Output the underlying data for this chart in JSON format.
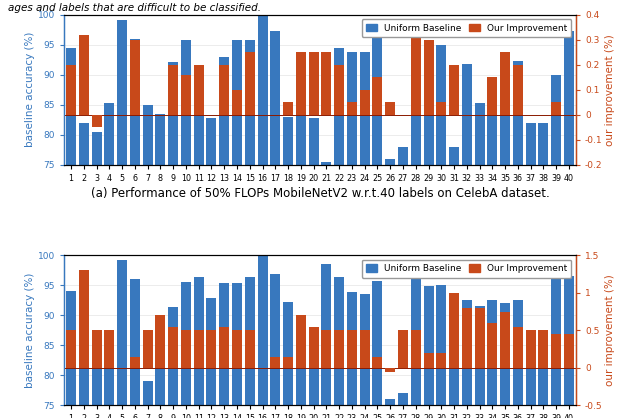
{
  "labels": [
    "1",
    "2",
    "3",
    "4",
    "5",
    "6",
    "7",
    "8",
    "9",
    "10",
    "11",
    "12",
    "13",
    "14",
    "15",
    "16",
    "17",
    "18",
    "19",
    "20",
    "21",
    "22",
    "23",
    "24",
    "25",
    "26",
    "27",
    "28",
    "29",
    "30",
    "31",
    "32",
    "33",
    "34",
    "35",
    "36",
    "37",
    "38",
    "39",
    "40"
  ],
  "chart1": {
    "baseline": [
      94.5,
      82.0,
      80.5,
      85.3,
      99.1,
      96.0,
      85.0,
      83.5,
      92.2,
      95.7,
      86.0,
      82.8,
      93.0,
      95.7,
      95.8,
      100.0,
      97.2,
      83.0,
      89.0,
      82.8,
      75.5,
      94.5,
      93.8,
      93.8,
      96.3,
      76.0,
      78.0,
      95.2,
      95.2,
      95.0,
      78.0,
      91.8,
      85.3,
      85.3,
      92.0,
      92.3,
      82.0,
      82.0,
      90.0,
      97.2
    ],
    "improvement": [
      0.2,
      0.32,
      -0.05,
      0.0,
      0.0,
      0.3,
      0.0,
      0.0,
      0.2,
      0.16,
      0.2,
      0.0,
      0.2,
      0.1,
      0.25,
      0.0,
      0.0,
      0.05,
      0.25,
      0.25,
      0.25,
      0.2,
      0.05,
      0.1,
      0.15,
      0.05,
      0.0,
      0.32,
      0.3,
      0.05,
      0.2,
      0.0,
      0.0,
      0.15,
      0.25,
      0.2,
      0.0,
      0.0,
      0.05,
      0.0
    ],
    "ylim_left": [
      75,
      100
    ],
    "ylim_right": [
      -0.2,
      0.4
    ],
    "yticks_left": [
      75,
      80,
      85,
      90,
      95,
      100
    ],
    "yticks_right": [
      -0.2,
      -0.1,
      0.0,
      0.1,
      0.2,
      0.3,
      0.4
    ],
    "subtitle": "(a) Performance of 50% FLOPs MobileNetV2 w.r.t.40 labels on CelebA dataset."
  },
  "chart2": {
    "baseline": [
      94.0,
      81.5,
      81.5,
      85.0,
      99.2,
      96.0,
      79.0,
      86.2,
      91.3,
      95.5,
      96.3,
      92.8,
      95.3,
      95.3,
      96.3,
      100.0,
      96.8,
      92.2,
      88.0,
      82.0,
      98.5,
      96.3,
      93.8,
      93.5,
      95.7,
      76.0,
      77.0,
      97.0,
      94.8,
      95.0,
      93.0,
      92.5,
      91.5,
      92.5,
      92.0,
      92.5,
      83.0,
      83.0,
      96.5,
      96.5
    ],
    "improvement": [
      0.5,
      1.3,
      0.5,
      0.5,
      0.0,
      0.15,
      0.5,
      0.7,
      0.55,
      0.5,
      0.5,
      0.5,
      0.55,
      0.5,
      0.5,
      0.0,
      0.15,
      0.15,
      0.7,
      0.55,
      0.5,
      0.5,
      0.5,
      0.5,
      0.15,
      -0.05,
      0.5,
      0.5,
      0.2,
      0.2,
      1.0,
      0.8,
      0.8,
      0.6,
      0.75,
      0.55,
      0.5,
      0.5,
      0.45,
      0.45
    ],
    "ylim_left": [
      75,
      100
    ],
    "ylim_right": [
      -0.5,
      1.5
    ],
    "yticks_left": [
      75,
      80,
      85,
      90,
      95,
      100
    ],
    "yticks_right": [
      -0.5,
      0.0,
      0.5,
      1.0,
      1.5
    ],
    "subtitle": "(b) Performance of 10% FLOPs MobileNetV2 w.r.t.40 labels on CelebA dataset."
  },
  "blue_color": "#3878BE",
  "orange_color": "#C8491A",
  "bar_width": 0.78,
  "legend_labels": [
    "Uniform Baseline",
    "Our Improvement"
  ],
  "left_ylabel": "baseline accuracy (%)",
  "right_ylabel": "our improvement (%)",
  "top_text": "ages and labels that are difficult to be classified.",
  "axis_fontsize": 7.5,
  "tick_fontsize": 6.5,
  "subtitle_fontsize": 8.5
}
